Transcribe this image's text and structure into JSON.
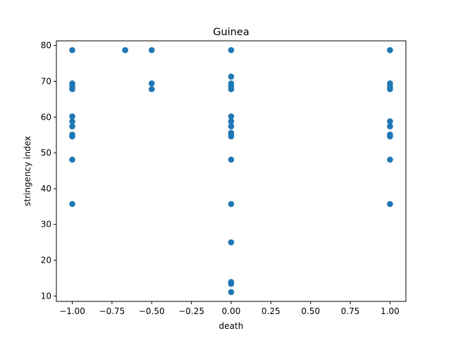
{
  "chart_data": {
    "type": "scatter",
    "title": "Guinea",
    "xlabel": "death",
    "ylabel": "stringency index",
    "xlim": [
      -1.1,
      1.1
    ],
    "ylim": [
      8.5,
      81.3
    ],
    "xticks": [
      "−1.00",
      "−0.75",
      "−0.50",
      "−0.25",
      "0.00",
      "0.25",
      "0.50",
      "0.75",
      "1.00"
    ],
    "yticks": [
      "10",
      "20",
      "30",
      "40",
      "50",
      "60",
      "70",
      "80"
    ],
    "grid": false,
    "legend": "none",
    "marker_color": "#1f77b4",
    "points": [
      {
        "x": -1.0,
        "y": 78.7
      },
      {
        "x": -1.0,
        "y": 69.4
      },
      {
        "x": -1.0,
        "y": 68.5
      },
      {
        "x": -1.0,
        "y": 67.8
      },
      {
        "x": -1.0,
        "y": 60.2
      },
      {
        "x": -1.0,
        "y": 58.8
      },
      {
        "x": -1.0,
        "y": 57.4
      },
      {
        "x": -1.0,
        "y": 55.1
      },
      {
        "x": -1.0,
        "y": 54.6
      },
      {
        "x": -1.0,
        "y": 48.1
      },
      {
        "x": -1.0,
        "y": 35.7
      },
      {
        "x": -0.667,
        "y": 78.7
      },
      {
        "x": -0.5,
        "y": 78.7
      },
      {
        "x": -0.5,
        "y": 69.4
      },
      {
        "x": -0.5,
        "y": 67.8
      },
      {
        "x": 0.0,
        "y": 78.7
      },
      {
        "x": 0.0,
        "y": 71.3
      },
      {
        "x": 0.0,
        "y": 69.4
      },
      {
        "x": 0.0,
        "y": 68.5
      },
      {
        "x": 0.0,
        "y": 67.8
      },
      {
        "x": 0.0,
        "y": 60.2
      },
      {
        "x": 0.0,
        "y": 58.8
      },
      {
        "x": 0.0,
        "y": 57.4
      },
      {
        "x": 0.0,
        "y": 55.6
      },
      {
        "x": 0.0,
        "y": 55.1
      },
      {
        "x": 0.0,
        "y": 54.6
      },
      {
        "x": 0.0,
        "y": 48.1
      },
      {
        "x": 0.0,
        "y": 35.7
      },
      {
        "x": 0.0,
        "y": 25.0
      },
      {
        "x": 0.0,
        "y": 13.9
      },
      {
        "x": 0.0,
        "y": 13.4
      },
      {
        "x": 0.0,
        "y": 11.1
      },
      {
        "x": 1.0,
        "y": 78.7
      },
      {
        "x": 1.0,
        "y": 69.4
      },
      {
        "x": 1.0,
        "y": 68.5
      },
      {
        "x": 1.0,
        "y": 67.8
      },
      {
        "x": 1.0,
        "y": 58.8
      },
      {
        "x": 1.0,
        "y": 57.4
      },
      {
        "x": 1.0,
        "y": 55.1
      },
      {
        "x": 1.0,
        "y": 54.6
      },
      {
        "x": 1.0,
        "y": 48.1
      },
      {
        "x": 1.0,
        "y": 35.7
      }
    ]
  }
}
